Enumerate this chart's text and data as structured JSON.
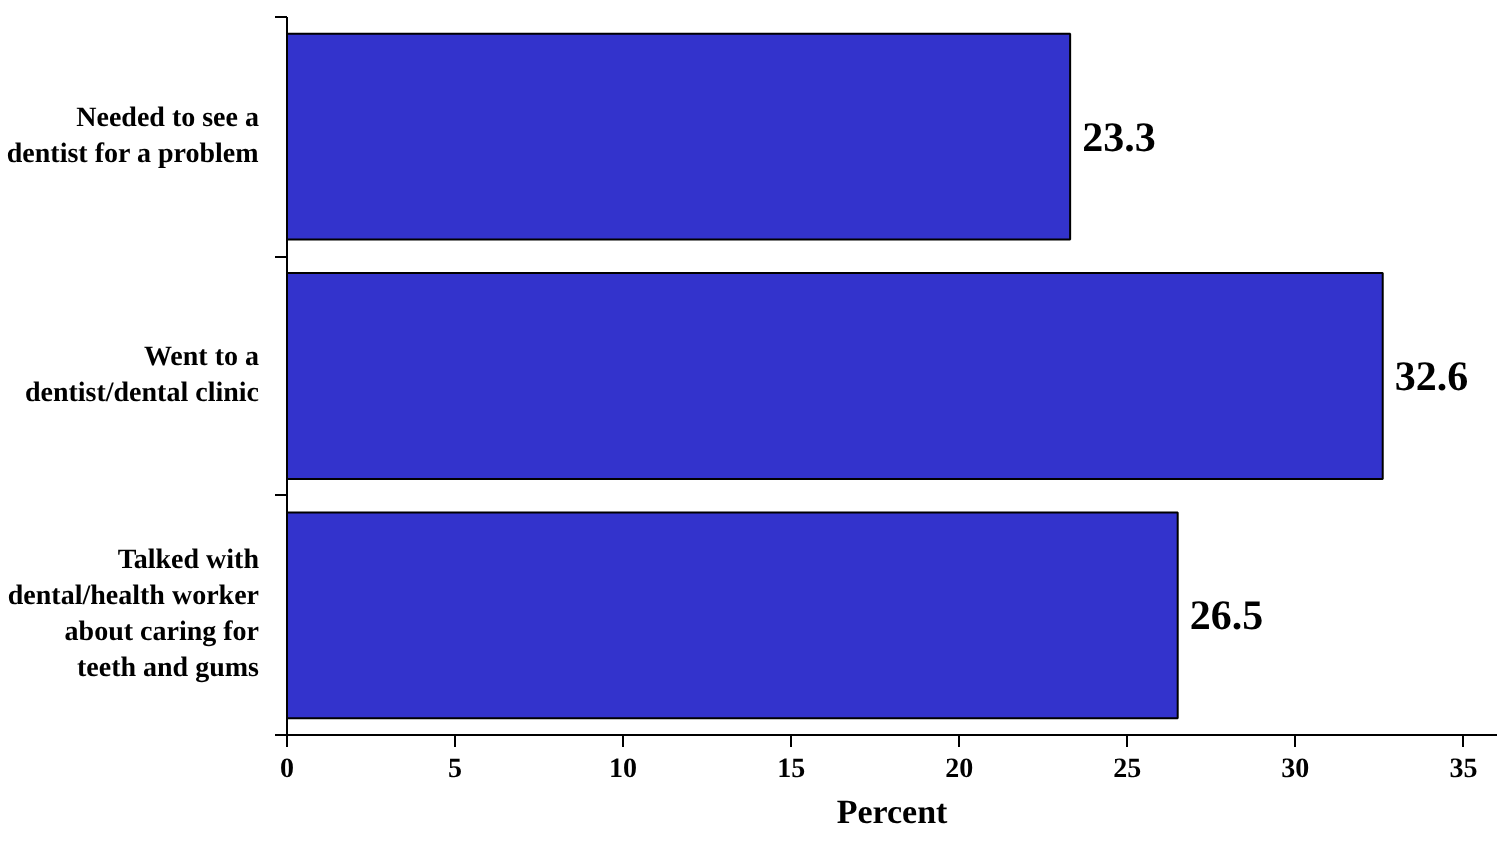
{
  "chart_data": {
    "type": "bar",
    "orientation": "horizontal",
    "categories": [
      "Needed to see a dentist for a problem",
      "Went to a dentist/dental clinic",
      "Talked with dental/health worker about caring for teeth and gums"
    ],
    "values": [
      23.3,
      32.6,
      26.5
    ],
    "color": "#3333cc",
    "xlim": [
      0,
      36
    ],
    "xticks": [
      0,
      5,
      10,
      15,
      20,
      25,
      30,
      35
    ],
    "xlabel": "Percent",
    "data_labels": true,
    "grid": false
  }
}
